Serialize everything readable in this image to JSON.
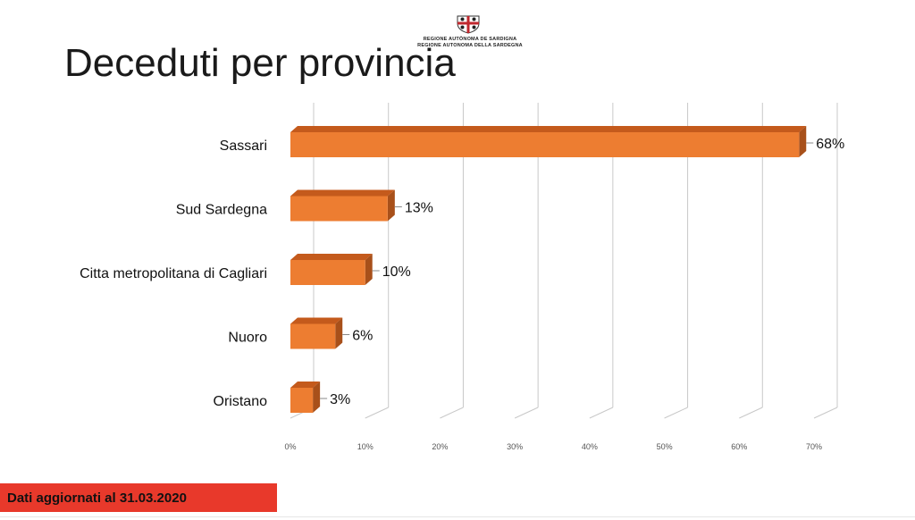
{
  "slide": {
    "title": "Deceduti per provincia",
    "logo": {
      "icon": "regional-coat-of-arms-icon",
      "line1": "REGIONE AUTÒNOMA DE SARDIGNA",
      "line2": "REGIONE AUTONOMA DELLA SARDEGNA"
    },
    "footer_text": "Dati aggiornati al 31.03.2020",
    "colors": {
      "bar_front": "#ED7D31",
      "bar_top": "#C45A1C",
      "bar_side": "#A8501A",
      "grid": "#c8c8c8",
      "footer_bg": "#e8392b"
    }
  },
  "chart_data": {
    "type": "bar",
    "orientation": "horizontal",
    "style": "3d",
    "categories": [
      "Sassari",
      "Sud Sardegna",
      "Citta metropolitana di Cagliari",
      "Nuoro",
      "Oristano"
    ],
    "values": [
      68,
      13,
      10,
      6,
      3
    ],
    "value_labels": [
      "68%",
      "13%",
      "10%",
      "6%",
      "3%"
    ],
    "xlim": [
      0,
      70
    ],
    "x_ticks": [
      0,
      10,
      20,
      30,
      40,
      50,
      60,
      70
    ],
    "x_tick_labels": [
      "0%",
      "10%",
      "20%",
      "30%",
      "40%",
      "50%",
      "60%",
      "70%"
    ],
    "grid": true,
    "legend": "none"
  }
}
